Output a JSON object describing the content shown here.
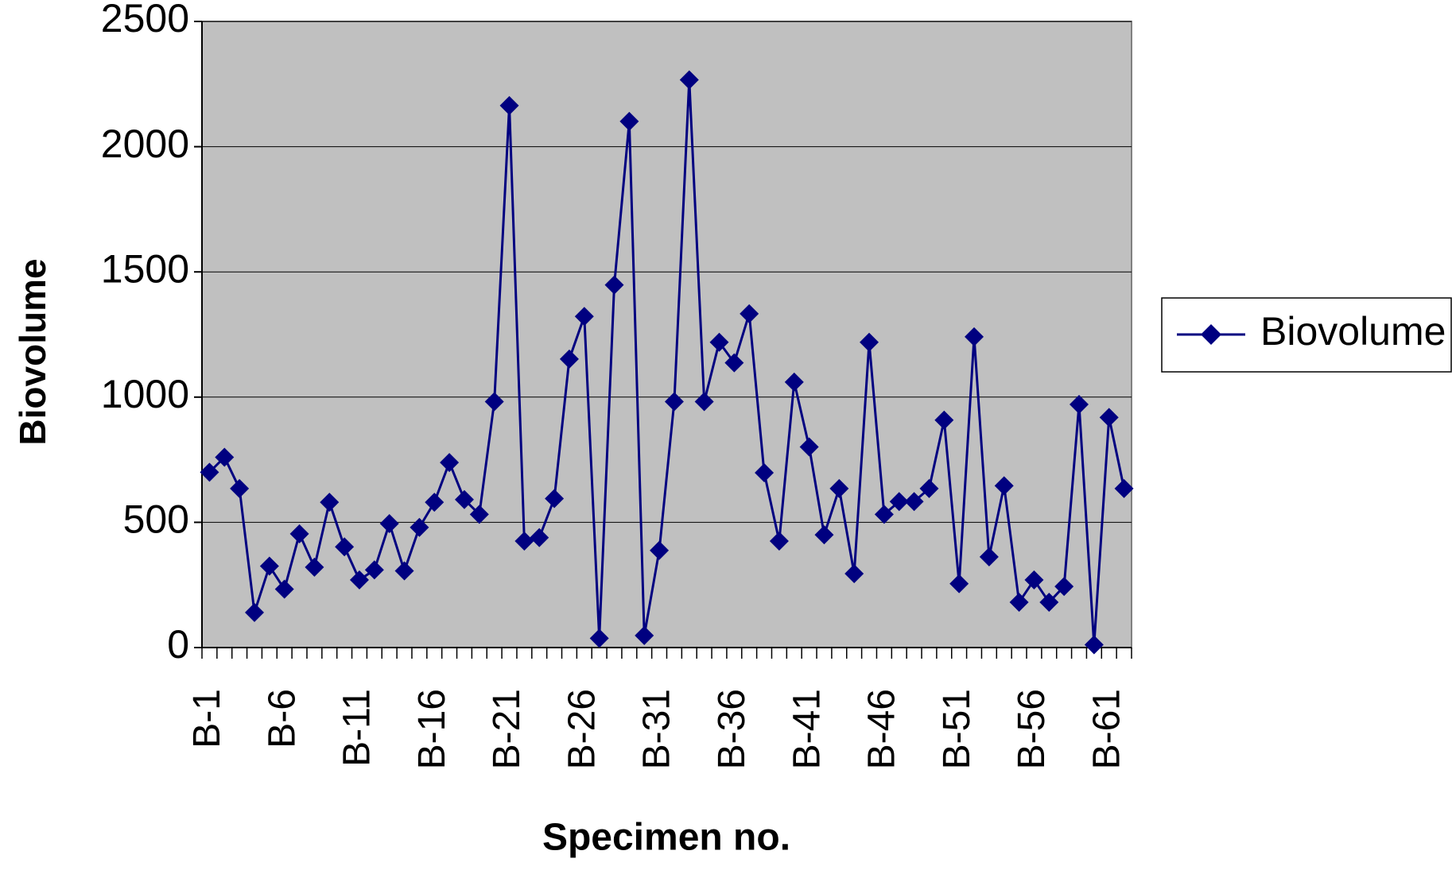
{
  "chart_data": {
    "type": "line",
    "x_label": "Specimen no.",
    "y_label": "Biovolume",
    "categories": [
      "B-1",
      null,
      null,
      null,
      null,
      "B-6",
      null,
      null,
      null,
      null,
      "B-11",
      null,
      null,
      null,
      null,
      "B-16",
      null,
      null,
      null,
      null,
      "B-21",
      null,
      null,
      null,
      null,
      "B-26",
      null,
      null,
      null,
      null,
      "B-31",
      null,
      null,
      null,
      null,
      "B-36",
      null,
      null,
      null,
      null,
      "B-41",
      null,
      null,
      null,
      null,
      "B-46",
      null,
      null,
      null,
      null,
      "B-51",
      null,
      null,
      null,
      null,
      "B-56",
      null,
      null,
      null,
      null,
      "B-61",
      null
    ],
    "series": [
      {
        "name": "Biovolume",
        "color": "#000080",
        "values": [
          700,
          760,
          635,
          140,
          325,
          233,
          454,
          321,
          580,
          402,
          270,
          310,
          495,
          306,
          480,
          580,
          739,
          591,
          532,
          982,
          2164,
          425,
          439,
          595,
          1152,
          1322,
          37,
          1448,
          2101,
          48,
          388,
          982,
          2267,
          982,
          1219,
          1137,
          1333,
          698,
          425,
          1060,
          801,
          450,
          635,
          295,
          1219,
          532,
          583,
          583,
          635,
          908,
          255,
          1241,
          362,
          646,
          181,
          270,
          181,
          244,
          971,
          11,
          919,
          635
        ]
      }
    ],
    "ylim": [
      0,
      2500
    ],
    "yticks": [
      0,
      500,
      1000,
      1500,
      2000,
      2500
    ],
    "grid": true,
    "plot_background": "#c0c0c0",
    "legend": "right"
  }
}
